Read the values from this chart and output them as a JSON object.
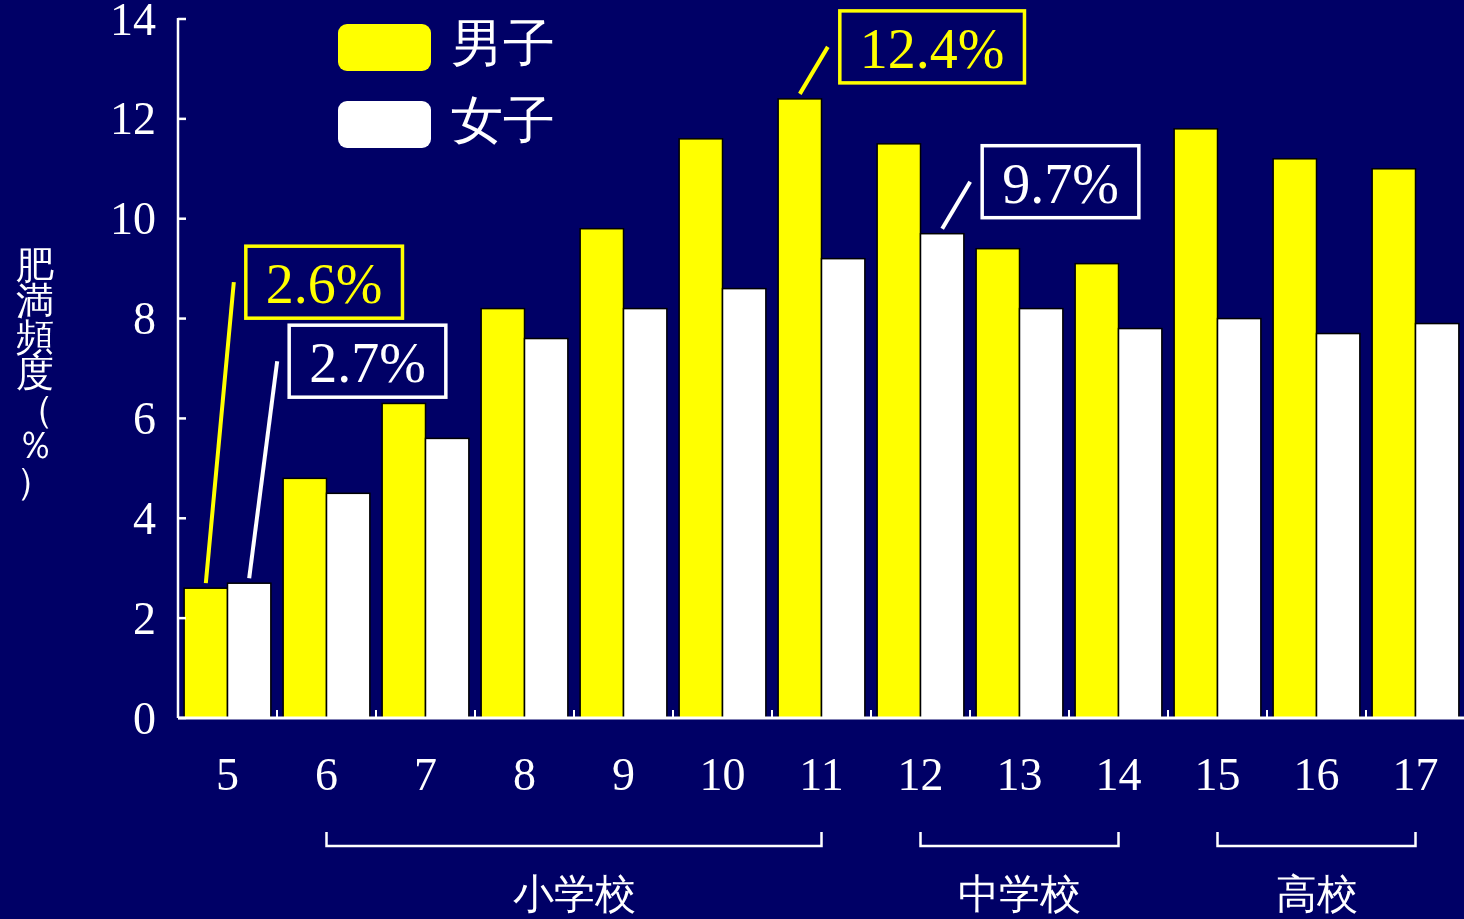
{
  "chart_data": {
    "type": "bar",
    "ylabel": "肥満頻度（％）",
    "categories": [
      "5",
      "6",
      "7",
      "8",
      "9",
      "10",
      "11",
      "12",
      "13",
      "14",
      "15",
      "16",
      "17"
    ],
    "series": [
      {
        "name": "男子",
        "color": "#ffff00",
        "values": [
          2.6,
          4.8,
          6.3,
          8.2,
          9.8,
          11.6,
          12.4,
          11.5,
          9.4,
          9.1,
          11.8,
          11.2,
          11.0
        ],
        "value_labels": [
          "2.6%",
          null,
          null,
          null,
          null,
          null,
          "12.4%",
          null,
          null,
          null,
          null,
          null,
          null
        ]
      },
      {
        "name": "女子",
        "color": "#ffffff",
        "values": [
          2.7,
          4.5,
          5.6,
          7.6,
          8.2,
          8.6,
          9.2,
          9.7,
          8.2,
          7.8,
          8.0,
          7.7,
          7.9
        ],
        "value_labels": [
          "2.7%",
          null,
          null,
          null,
          null,
          null,
          null,
          "9.7%",
          null,
          null,
          null,
          null,
          null
        ]
      }
    ],
    "ylim": [
      0,
      14
    ],
    "yticks": [
      0,
      2,
      4,
      6,
      8,
      10,
      12,
      14
    ],
    "grid": false,
    "legend": "top left",
    "annotations": [
      "小学校",
      "中学校",
      "高校"
    ]
  }
}
